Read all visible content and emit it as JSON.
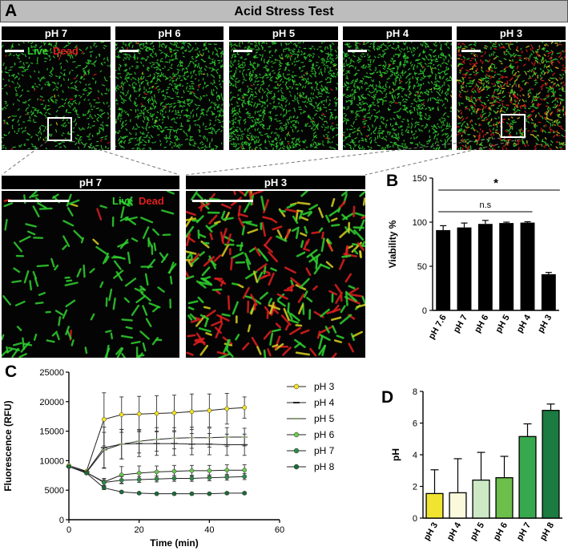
{
  "figure": {
    "panel_letters": {
      "a": "A",
      "b": "B",
      "c": "C",
      "d": "D"
    },
    "title": "Acid Stress Test",
    "stain_labels": {
      "live": "Live",
      "dead": "Dead"
    },
    "top_images": [
      {
        "label": "pH 7"
      },
      {
        "label": "pH 6"
      },
      {
        "label": "pH 5"
      },
      {
        "label": "pH 4"
      },
      {
        "label": "pH 3"
      }
    ],
    "zoom_images": [
      {
        "label": "pH 7"
      },
      {
        "label": "pH 3"
      }
    ],
    "colors": {
      "live": "#2fd12f",
      "dead": "#e01e1e",
      "background": "#040404"
    }
  },
  "chart_data": [
    {
      "panel": "B",
      "type": "bar",
      "categories": [
        "pH 7.6",
        "pH 7",
        "pH 6",
        "pH 5",
        "pH 4",
        "pH 3"
      ],
      "values": [
        91,
        94,
        98,
        99,
        99.5,
        41
      ],
      "errors": [
        5,
        5,
        4,
        1,
        1,
        2
      ],
      "ylabel": "Viability %",
      "ylim": [
        0,
        150
      ],
      "yticks": [
        "0",
        "50",
        "100",
        "150"
      ],
      "annotations": [
        {
          "text": "*",
          "from": "pH 7.6",
          "to": "pH 3"
        },
        {
          "text": "n.s",
          "from": "pH 7.6",
          "to": "pH 4"
        }
      ],
      "bar_color": "#000000"
    },
    {
      "panel": "C",
      "type": "line",
      "xlabel": "Time (min)",
      "ylabel": "Fluorescence (RFU)",
      "xlim": [
        0,
        60
      ],
      "ylim": [
        0,
        25000
      ],
      "xticks": [
        "0",
        "20",
        "40",
        "60"
      ],
      "yticks": [
        "0",
        "5000",
        "10000",
        "15000",
        "20000",
        "25000"
      ],
      "x": [
        0,
        5,
        10,
        15,
        20,
        25,
        30,
        35,
        40,
        45,
        50
      ],
      "series": [
        {
          "name": "pH 3",
          "color": "#f2e41e",
          "marker": "dot",
          "values": [
            9200,
            8200,
            17000,
            17800,
            17900,
            18000,
            18100,
            18300,
            18500,
            18800,
            19000
          ],
          "errors": [
            0,
            0,
            4500,
            3000,
            3000,
            3000,
            3000,
            3000,
            2800,
            2600,
            1800
          ]
        },
        {
          "name": "pH 4",
          "color": "#555555",
          "marker": "dash",
          "values": [
            9000,
            8100,
            12200,
            12800,
            12900,
            12900,
            12900,
            12800,
            12800,
            12700,
            12700
          ],
          "errors": [
            0,
            0,
            3500,
            2500,
            2200,
            2000,
            2000,
            1800,
            1800,
            1800,
            1800
          ]
        },
        {
          "name": "pH 5",
          "color": "#cfe8b0",
          "marker": "dash",
          "values": [
            9000,
            8000,
            11800,
            12800,
            13300,
            13600,
            13800,
            13900,
            13900,
            14000,
            14000
          ],
          "errors": [
            0,
            0,
            3000,
            2500,
            2000,
            2000,
            1800,
            1800,
            1600,
            1600,
            1500
          ]
        },
        {
          "name": "pH 6",
          "color": "#6cc84f",
          "marker": "dot",
          "values": [
            9000,
            8000,
            6400,
            7600,
            7900,
            8100,
            8200,
            8300,
            8300,
            8400,
            8400
          ],
          "errors": [
            0,
            0,
            600,
            1400,
            1200,
            1000,
            1000,
            900,
            900,
            900,
            900
          ]
        },
        {
          "name": "pH 7",
          "color": "#2e8b4a",
          "marker": "dot",
          "values": [
            9000,
            8000,
            6300,
            6700,
            6800,
            6900,
            7000,
            7000,
            7100,
            7200,
            7300
          ],
          "errors": [
            0,
            0,
            500,
            600,
            500,
            500,
            500,
            500,
            500,
            500,
            500
          ]
        },
        {
          "name": "pH 8",
          "color": "#1a6b38",
          "marker": "dot",
          "values": [
            9000,
            7900,
            5400,
            4700,
            4500,
            4400,
            4400,
            4400,
            4400,
            4500,
            4500
          ],
          "errors": [
            0,
            0,
            300,
            200,
            200,
            200,
            200,
            200,
            200,
            200,
            200
          ]
        }
      ]
    },
    {
      "panel": "D",
      "type": "bar",
      "categories": [
        "pH 3",
        "pH 4",
        "pH 5",
        "pH 6",
        "pH 7",
        "pH 8"
      ],
      "values": [
        1.55,
        1.6,
        2.4,
        2.55,
        5.15,
        6.8
      ],
      "errors": [
        1.5,
        2.15,
        1.75,
        1.35,
        0.8,
        0.4
      ],
      "ylabel": "pH",
      "ylim": [
        0,
        8
      ],
      "yticks": [
        "0",
        "2",
        "4",
        "6",
        "8"
      ],
      "bar_colors": [
        "#f0e431",
        "#fbf9dc",
        "#cde8c5",
        "#6cbf4a",
        "#38a84f",
        "#1b7b40"
      ]
    }
  ]
}
